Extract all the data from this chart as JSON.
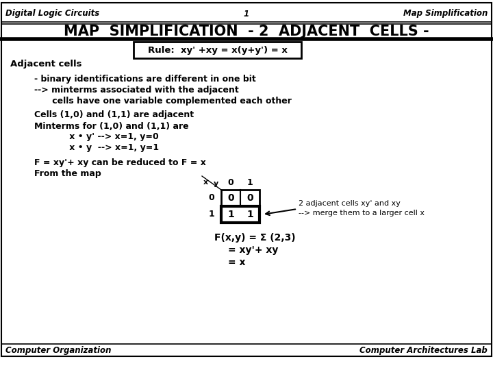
{
  "header_left": "Digital Logic Circuits",
  "header_center": "1",
  "header_right": "Map Simplification",
  "title": "MAP  SIMPLIFICATION  - 2  ADJACENT  CELLS -",
  "footer_left": "Computer Organization",
  "footer_right": "Computer Architectures Lab",
  "rule_text": "Rule:  xy' +xy = x(y+y') = x",
  "adjacent_cells_label": "Adjacent cells",
  "line1": "- binary identifications are different in one bit",
  "line2": "--> minterms associated with the adjacent",
  "line3": "      cells have one variable complemented each other",
  "line4": "Cells (1,0) and (1,1) are adjacent",
  "line5": "Minterms for (1,0) and (1,1) are",
  "line6": "      x • y' --> x=1, y=0",
  "line7": "      x • y  --> x=1, y=1",
  "line8": "F = xy'+ xy can be reduced to F = x",
  "line9": "From the map",
  "fxy_line1": "F(x,y) = Σ (2,3)",
  "fxy_line2": "= xy'+ xy",
  "fxy_line3": "= x",
  "arrow_text1": "2 adjacent cells xy' and xy",
  "arrow_text2": "--> merge them to a larger cell x",
  "bg_color": "#ffffff"
}
